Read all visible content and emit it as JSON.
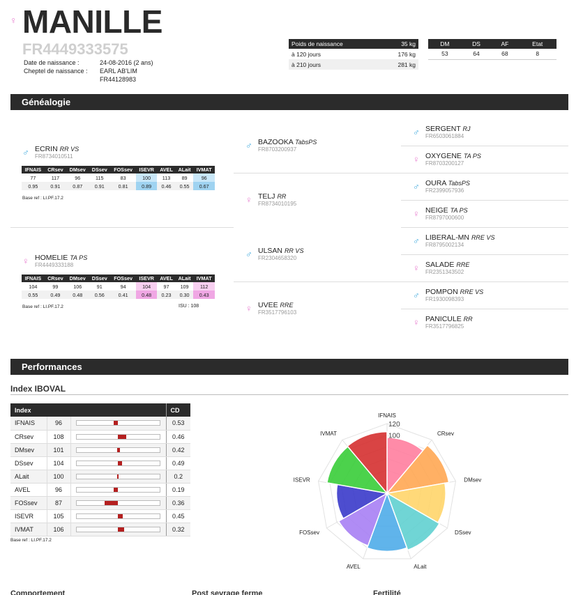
{
  "header": {
    "sex_icon": "female-symbol",
    "name": "MANILLE",
    "id": "FR4449333575",
    "birth_label": "Date de naissance :",
    "birth_value": "24-08-2016 (2 ans)",
    "herd_label": "Cheptel de naissance :",
    "herd_value": "EARL AB'LIM",
    "herd_id": "FR44128983"
  },
  "weights": {
    "header": [
      "Poids de naissance",
      "35 kg"
    ],
    "rows": [
      [
        "à 120 jours",
        "176 kg"
      ],
      [
        "à 210 jours",
        "281 kg"
      ]
    ]
  },
  "dm_table": {
    "headers": [
      "DM",
      "DS",
      "AF",
      "Etat"
    ],
    "values": [
      "53",
      "64",
      "68",
      "8"
    ]
  },
  "genealogy": {
    "title": "Généalogie",
    "mini_headers": [
      "IFNAIS",
      "CRsev",
      "DMsev",
      "DSsev",
      "FOSsev",
      "ISEVR",
      "AVEL",
      "ALait",
      "IVMAT"
    ],
    "sire": {
      "sex_icon": "male-symbol",
      "name": "ECRIN",
      "tags": "RR VS",
      "id": "FR8734010511",
      "row1": [
        "77",
        "117",
        "96",
        "115",
        "83",
        "100",
        "113",
        "89",
        "96"
      ],
      "row2": [
        "0.95",
        "0.91",
        "0.87",
        "0.91",
        "0.81",
        "0.89",
        "0.46",
        "0.55",
        "0.67"
      ],
      "base_ref": "Base ref : LI.PF.17.2"
    },
    "dam": {
      "sex_icon": "female-symbol",
      "name": "HOMELIE",
      "tags": "TA PS",
      "id": "FR4449333188",
      "row1": [
        "104",
        "99",
        "106",
        "91",
        "94",
        "104",
        "97",
        "109",
        "112"
      ],
      "row2": [
        "0.55",
        "0.49",
        "0.48",
        "0.56",
        "0.41",
        "0.48",
        "0.23",
        "0.30",
        "0.43"
      ],
      "base_ref": "Base ref : LI.PF.17.2",
      "isu": "ISU : 108"
    },
    "grandparents": [
      {
        "sex_icon": "male-symbol",
        "name": "BAZOOKA",
        "tags": "TabsPS",
        "id": "FR8703200937"
      },
      {
        "sex_icon": "female-symbol",
        "name": "TELJ",
        "tags": "RR",
        "id": "FR8734010195"
      },
      {
        "sex_icon": "male-symbol",
        "name": "ULSAN",
        "tags": "RR VS",
        "id": "FR2304658320"
      },
      {
        "sex_icon": "female-symbol",
        "name": "UVEE",
        "tags": "RRE",
        "id": "FR3517796103"
      }
    ],
    "great_grandparents": [
      {
        "sex_icon": "male-symbol",
        "name": "SERGENT",
        "tags": "RJ",
        "id": "FR6503061884"
      },
      {
        "sex_icon": "female-symbol",
        "name": "OXYGENE",
        "tags": "TA PS",
        "id": "FR8703200127"
      },
      {
        "sex_icon": "male-symbol",
        "name": "OURA",
        "tags": "TabsPS",
        "id": "FR2399057936"
      },
      {
        "sex_icon": "female-symbol",
        "name": "NEIGE",
        "tags": "TA PS",
        "id": "FR8797000600"
      },
      {
        "sex_icon": "male-symbol",
        "name": "LIBERAL-MN",
        "tags": "RRE VS",
        "id": "FR8795002134"
      },
      {
        "sex_icon": "female-symbol",
        "name": "SALADE",
        "tags": "RRE",
        "id": "FR2351343502"
      },
      {
        "sex_icon": "male-symbol",
        "name": "POMPON",
        "tags": "RRE VS",
        "id": "FR1930098393"
      },
      {
        "sex_icon": "female-symbol",
        "name": "PANICULE",
        "tags": "RR",
        "id": "FR3517796825"
      }
    ]
  },
  "performances": {
    "title": "Performances",
    "index_title": "Index IBOVAL",
    "col_index": "Index",
    "col_cd": "CD",
    "base_ref": "Base ref : LI.PF.17.2",
    "footer": [
      "Comportement",
      "Post sevrage ferme",
      "Fertilité"
    ]
  },
  "chart_data": {
    "type": "polar-area",
    "categories": [
      "IFNAIS",
      "CRsev",
      "DMsev",
      "DSsev",
      "ALait",
      "AVEL",
      "FOSsev",
      "ISEVR",
      "IVMAT"
    ],
    "values": [
      96,
      108,
      101,
      104,
      100,
      96,
      87,
      105,
      106
    ],
    "cd": [
      0.53,
      0.46,
      0.42,
      0.49,
      0.2,
      0.19,
      0.36,
      0.45,
      0.32
    ],
    "colors": [
      "#ff7b9c",
      "#ffa54f",
      "#ffd466",
      "#5ccfcf",
      "#4aaae8",
      "#a57cf4",
      "#3434c8",
      "#33cc33",
      "#d42a2a"
    ],
    "bar_range": [
      60,
      140
    ],
    "rlim": [
      0,
      120
    ],
    "tick_labels": [
      "120",
      "100"
    ]
  }
}
